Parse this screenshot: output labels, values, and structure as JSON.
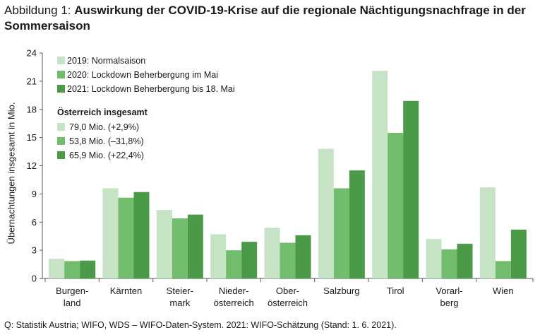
{
  "title": {
    "prefix": "Abbildung 1: ",
    "text": "Auswirkung der COVID-19-Krise auf die regionale Nächtigungsnachfrage in der Sommersaison"
  },
  "source": "Q: Statistik Austria; WIFO, WDS – WIFO-Daten-System. 2021: WIFO-Schätzung (Stand: 1. 6. 2021).",
  "colors": {
    "series_2019": "#c6e4c5",
    "series_2020": "#72bc6e",
    "series_2021": "#4a9a48",
    "axis": "#555555"
  },
  "chart_data": {
    "type": "bar",
    "ylabel": "Übernachtungen insgesamt in Mio.",
    "xlabel": "",
    "ylim": [
      0,
      24
    ],
    "yticks": [
      0,
      3,
      6,
      9,
      12,
      15,
      18,
      21,
      24
    ],
    "grid": false,
    "legend_position": "top-left",
    "categories": [
      [
        "Burgen-",
        "land"
      ],
      [
        "Kärnten"
      ],
      [
        "Steier-",
        "mark"
      ],
      [
        "Nieder-",
        "österreich"
      ],
      [
        "Ober-",
        "österreich"
      ],
      [
        "Salzburg"
      ],
      [
        "Tirol"
      ],
      [
        "Vorarl-",
        "berg"
      ],
      [
        "Wien"
      ]
    ],
    "series": [
      {
        "name": "2019: Normalsaison",
        "values": [
          2.1,
          9.6,
          7.3,
          4.7,
          5.4,
          13.8,
          22.1,
          4.2,
          9.7
        ]
      },
      {
        "name": "2020: Lockdown Beherbergung im Mai",
        "values": [
          1.85,
          8.6,
          6.4,
          3.0,
          3.8,
          9.6,
          15.5,
          3.1,
          1.85
        ]
      },
      {
        "name": "2021: Lockdown Beherbergung bis 18. Mai",
        "values": [
          1.9,
          9.2,
          6.8,
          3.9,
          4.6,
          11.5,
          18.9,
          3.7,
          5.2
        ]
      }
    ],
    "totals": {
      "title": "Österreich insgesamt",
      "entries": [
        "79,0 Mio. (+2,9%)",
        "53,8 Mio. (–31,8%)",
        "65,9 Mio. (+22,4%)"
      ]
    }
  }
}
